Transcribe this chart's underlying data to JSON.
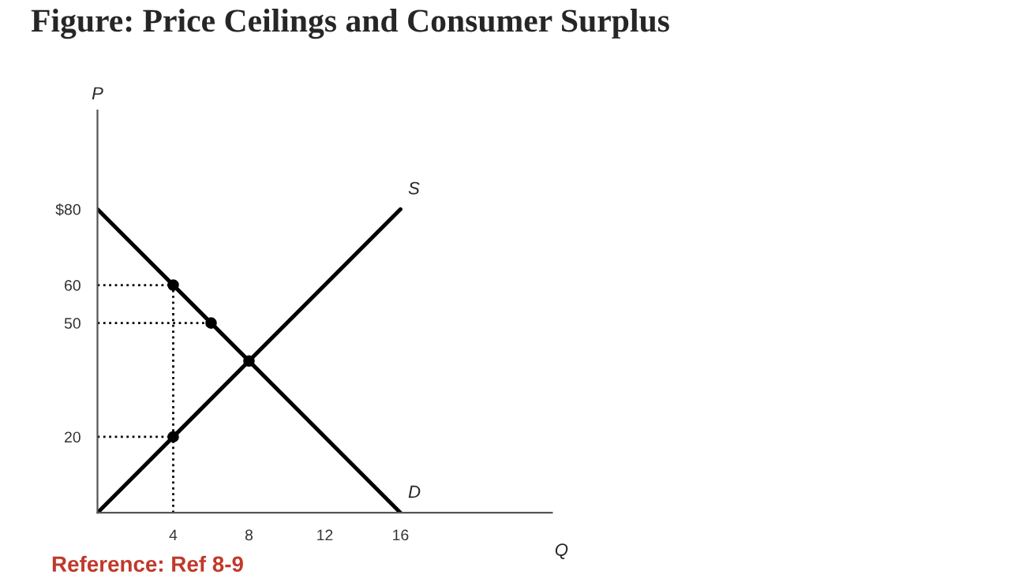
{
  "chart_data": {
    "type": "line",
    "title": "Figure: Price Ceilings and Consumer Surplus",
    "xlabel": "Q",
    "ylabel": "P",
    "xlim": [
      0,
      24
    ],
    "ylim": [
      0,
      106
    ],
    "xticks": [
      4,
      8,
      12,
      16
    ],
    "yticks": [
      20,
      50,
      60,
      {
        "value": 80,
        "label": "$80"
      }
    ],
    "grid": false,
    "legend": false,
    "series": [
      {
        "name": "S",
        "color": "#000000",
        "x": [
          0,
          16
        ],
        "values": [
          0,
          80
        ],
        "line_style": "solid",
        "marker": "none"
      },
      {
        "name": "D",
        "color": "#000000",
        "x": [
          0,
          16
        ],
        "values": [
          80,
          0
        ],
        "line_style": "solid",
        "marker": "none"
      },
      {
        "color": "#000000",
        "x": [
          0,
          4
        ],
        "values": [
          60,
          60
        ],
        "line_style": "dotted",
        "marker": "none"
      },
      {
        "color": "#000000",
        "x": [
          0,
          6
        ],
        "values": [
          50,
          50
        ],
        "line_style": "dotted",
        "marker": "none"
      },
      {
        "color": "#000000",
        "x": [
          0,
          4
        ],
        "values": [
          20,
          20
        ],
        "line_style": "dotted",
        "marker": "none"
      },
      {
        "color": "#000000",
        "x": [
          4,
          4
        ],
        "values": [
          0,
          60
        ],
        "line_style": "dotted",
        "marker": "none"
      },
      {
        "type": "scatter",
        "color": "#000000",
        "x": [
          4,
          6,
          8,
          4
        ],
        "values": [
          60,
          50,
          40,
          20
        ],
        "marker": "circle"
      }
    ],
    "annotations": [
      "Reference: Ref 8-9"
    ]
  }
}
